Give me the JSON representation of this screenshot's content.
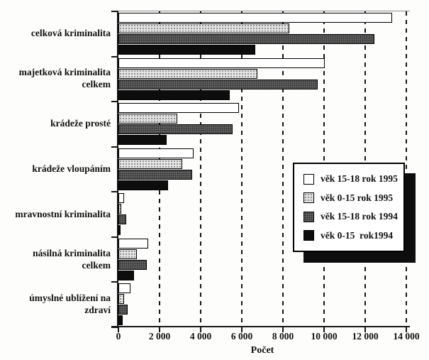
{
  "chart_data": {
    "type": "bar",
    "orientation": "horizontal",
    "xlabel": "Počet",
    "xlim": [
      0,
      14000
    ],
    "xticks": [
      0,
      2000,
      4000,
      6000,
      8000,
      10000,
      12000,
      14000
    ],
    "xtick_labels": [
      "0",
      "2 000",
      "4 000",
      "6 000",
      "8 000",
      "10 000",
      "12 000",
      "14 000"
    ],
    "grid": {
      "vertical_dashed_at": [
        2000,
        4000,
        6000,
        8000,
        10000,
        12000,
        14000
      ]
    },
    "categories": [
      "celková kriminalita",
      "majetková kriminalita\ncelkem",
      "krádeže prosté",
      "krádeže vloupáním",
      "mravnostní kriminalita",
      "násilná kriminalita\ncelkem",
      "úmyslné ublížení na\nzdraví"
    ],
    "series": [
      {
        "name": "věk 15-18 rok 1995",
        "swatch": "white",
        "values": [
          13300,
          10050,
          5850,
          3650,
          280,
          1450,
          570
        ]
      },
      {
        "name": "věk 0-15 rok 1995",
        "swatch": "light-halftone",
        "values": [
          8300,
          6750,
          2850,
          3100,
          140,
          900,
          270
        ]
      },
      {
        "name": "věk 15-18 rok 1994",
        "swatch": "dark-halftone",
        "values": [
          12450,
          9700,
          5550,
          3600,
          370,
          1380,
          450
        ]
      },
      {
        "name": "věk 0-15  rok1994",
        "swatch": "black",
        "values": [
          6650,
          5400,
          2350,
          2400,
          120,
          760,
          210
        ]
      }
    ],
    "legend_position": "inset middle-right, boxed with black drop shadow"
  },
  "colors": {
    "axis": "#151515",
    "bar_border": "#000000",
    "light_halftone_bg": "#e4e4e4",
    "light_halftone_dot": "#8f8f8f",
    "dark_halftone_bg": "#6f6f6f",
    "dark_halftone_dot": "#2a2a2a",
    "black_fill": "#0d0d0d"
  }
}
